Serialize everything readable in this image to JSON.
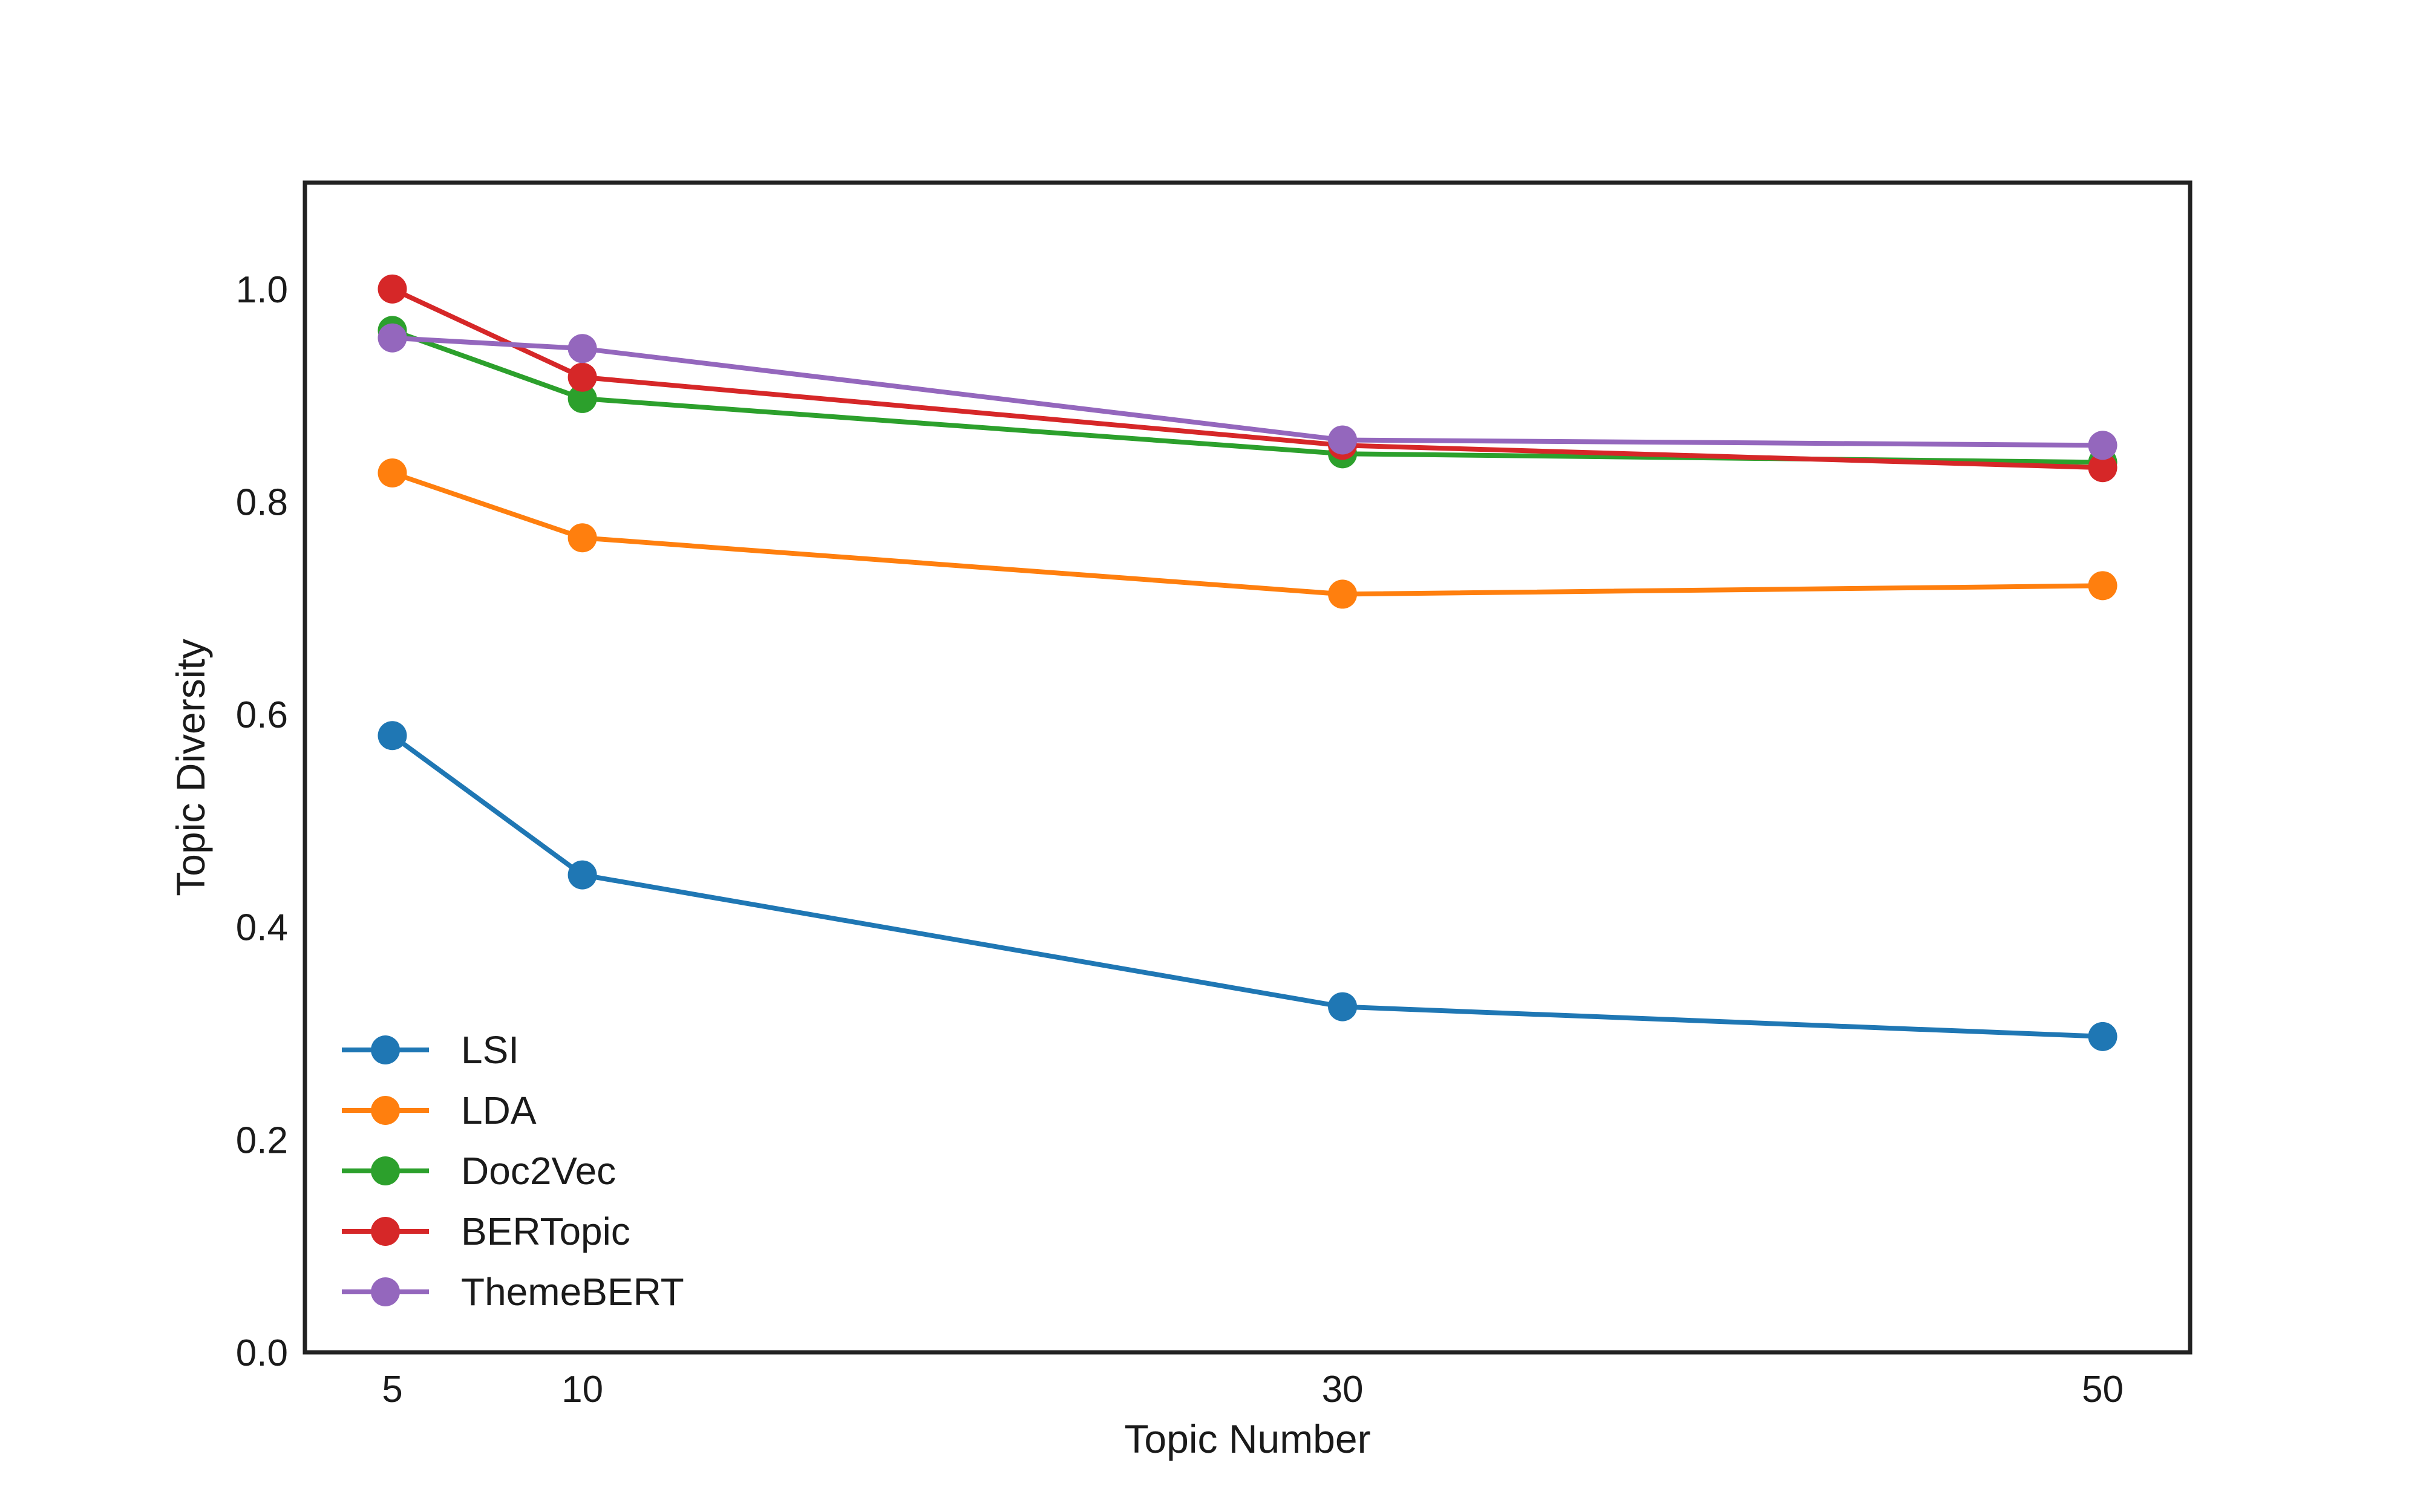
{
  "chart_data": {
    "type": "line",
    "title": "",
    "xlabel": "Topic Number",
    "ylabel": "Topic Diversity",
    "x": [
      5,
      10,
      30,
      50
    ],
    "x_tick_labels": [
      "5",
      "10",
      "30",
      "50"
    ],
    "xlim": [
      2.7,
      52.3
    ],
    "ylim": [
      0.0,
      1.1
    ],
    "y_ticks": [
      0.0,
      0.2,
      0.4,
      0.6,
      0.8,
      1.0
    ],
    "y_tick_labels": [
      "0.0",
      "0.2",
      "0.4",
      "0.6",
      "0.8",
      "1.0"
    ],
    "grid": false,
    "legend_position": "lower-left",
    "series": [
      {
        "name": "LSI",
        "color": "#1f77b4",
        "values": [
          0.58,
          0.449,
          0.325,
          0.297
        ]
      },
      {
        "name": "LDA",
        "color": "#ff7f0e",
        "values": [
          0.827,
          0.766,
          0.713,
          0.721
        ]
      },
      {
        "name": "Doc2Vec",
        "color": "#2ca02c",
        "values": [
          0.961,
          0.897,
          0.845,
          0.837
        ]
      },
      {
        "name": "BERTopic",
        "color": "#d62728",
        "values": [
          1.0,
          0.917,
          0.853,
          0.832
        ]
      },
      {
        "name": "ThemeBERT",
        "color": "#9467bd",
        "values": [
          0.954,
          0.944,
          0.858,
          0.853
        ]
      }
    ]
  }
}
